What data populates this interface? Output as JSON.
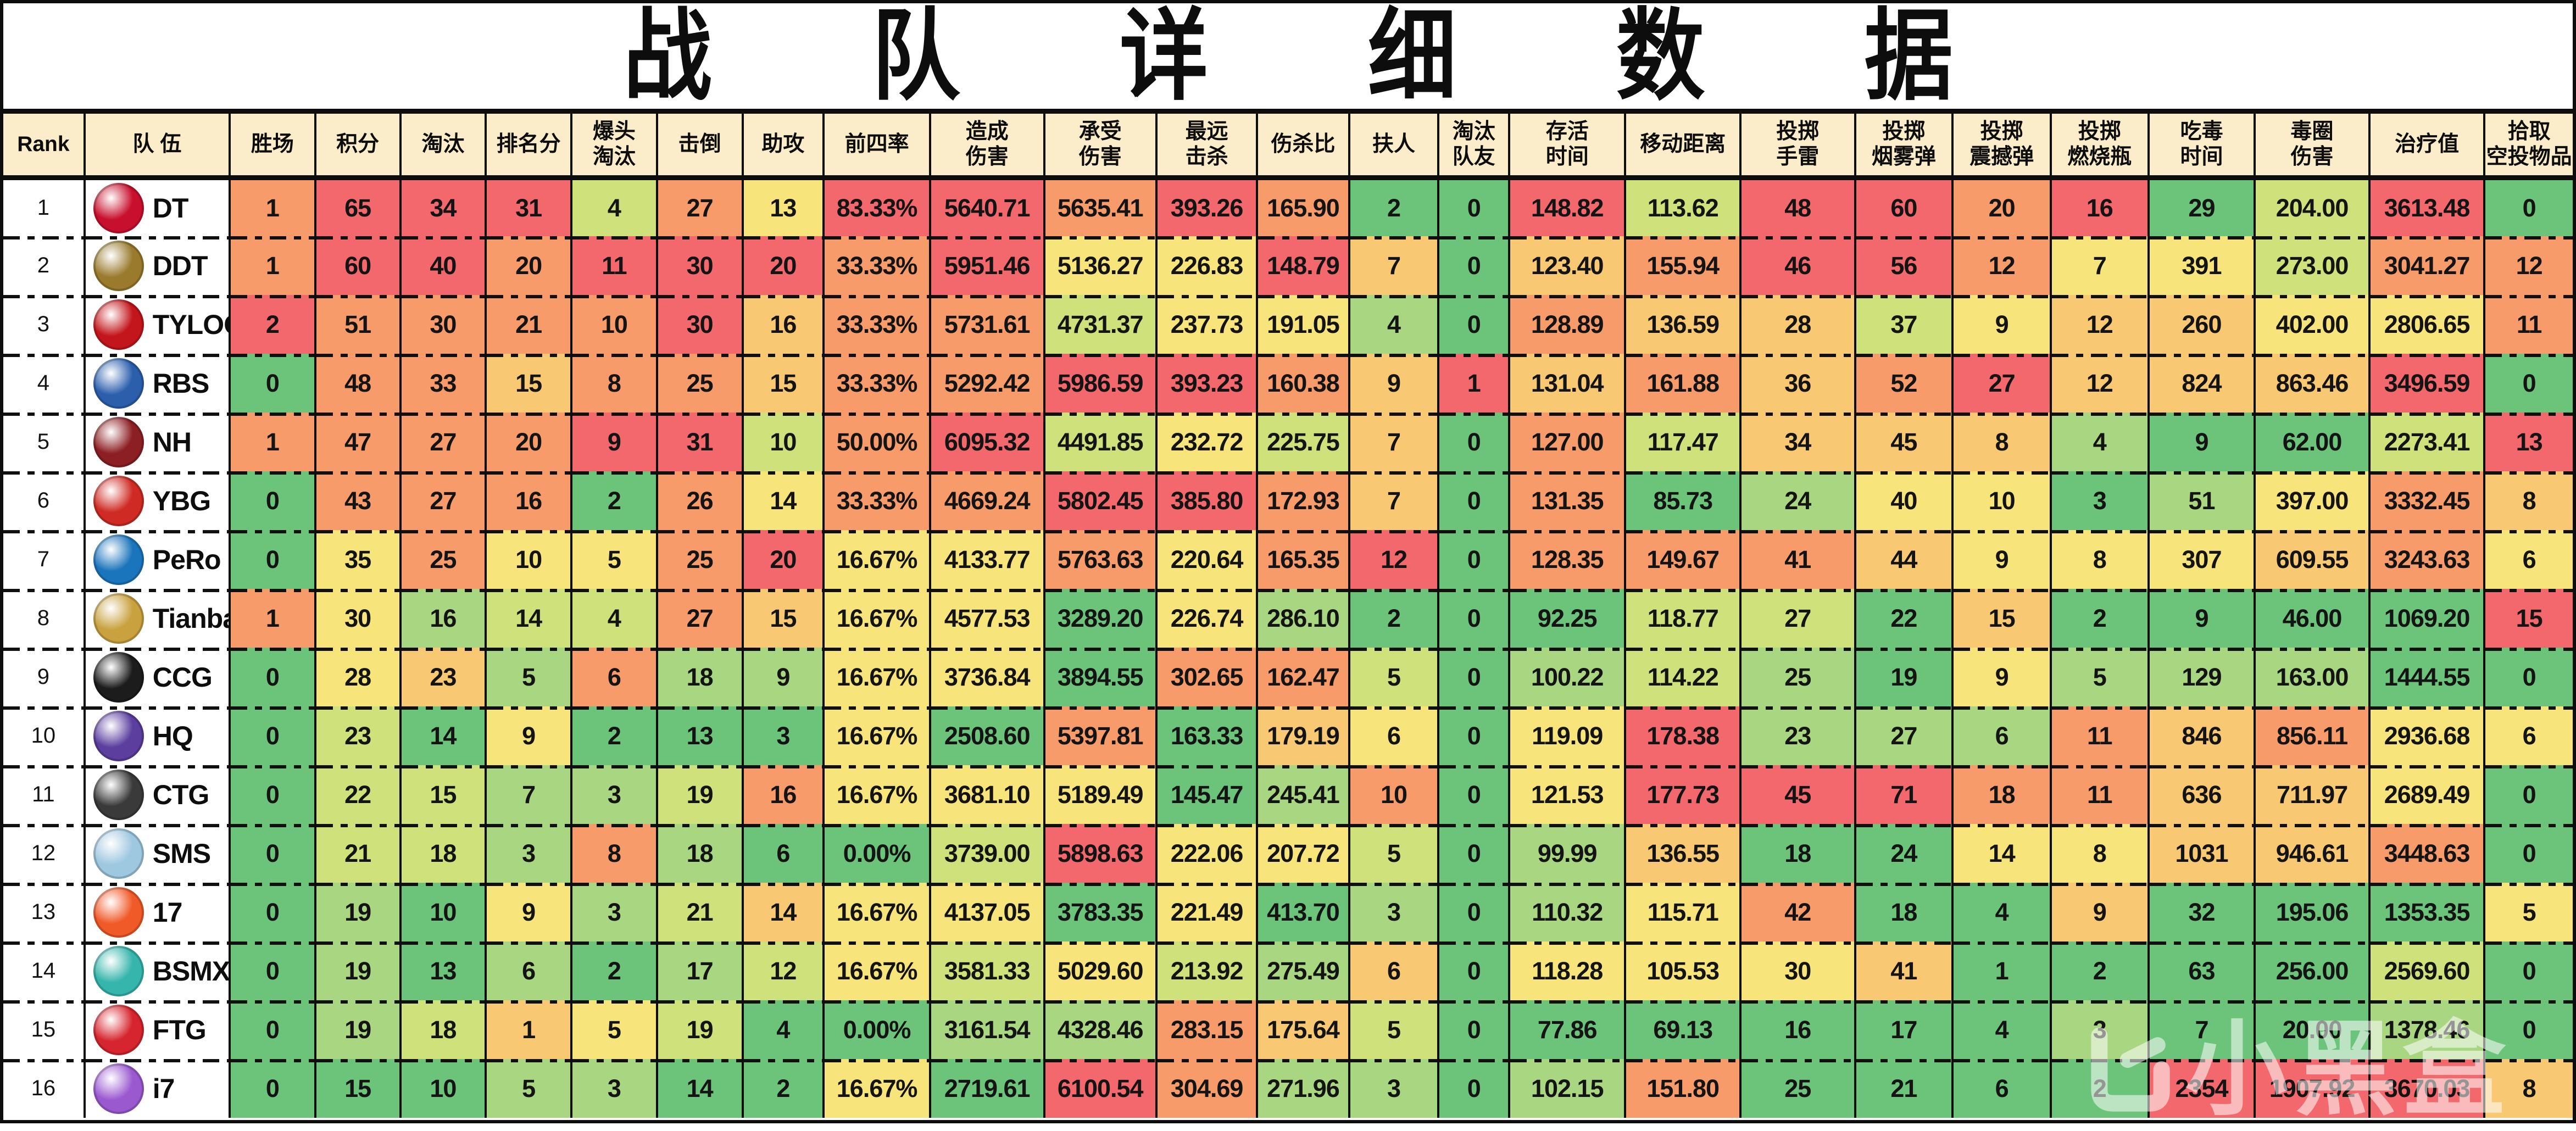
{
  "title": "战 队 详 细 数 据",
  "watermark": {
    "text": "小黑盒",
    "logo": "box-logo",
    "color": "#ffffff"
  },
  "palette": {
    "R": "#F3686C",
    "O": "#F79B6B",
    "A": "#F9C873",
    "Y": "#F7E57C",
    "G1": "#CFE17B",
    "G2": "#A9D681",
    "G3": "#6CC37A",
    "header_bg": "#FCEDCA",
    "border": "#0d0d0d",
    "plain_bg": "#ffffff"
  },
  "columns": [
    {
      "label": [
        "Rank"
      ],
      "width": 3.16
    },
    {
      "label": [
        "队  伍"
      ],
      "width": 5.65
    },
    {
      "label": [
        "胜场"
      ],
      "width": 3.33
    },
    {
      "label": [
        "积分"
      ],
      "width": 3.31
    },
    {
      "label": [
        "淘汰"
      ],
      "width": 3.33
    },
    {
      "label": [
        "排名分"
      ],
      "width": 3.33
    },
    {
      "label": [
        "爆头",
        "淘汰"
      ],
      "width": 3.33
    },
    {
      "label": [
        "击倒"
      ],
      "width": 3.33
    },
    {
      "label": [
        "助攻"
      ],
      "width": 3.16
    },
    {
      "label": [
        "前四率"
      ],
      "width": 4.14
    },
    {
      "label": [
        "造成",
        "伤害"
      ],
      "width": 4.44
    },
    {
      "label": [
        "承受",
        "伤害"
      ],
      "width": 4.37
    },
    {
      "label": [
        "最远",
        "击杀"
      ],
      "width": 3.92
    },
    {
      "label": [
        "伤杀比"
      ],
      "width": 3.58
    },
    {
      "label": [
        "扶人"
      ],
      "width": 3.48
    },
    {
      "label": [
        "淘汰",
        "队友"
      ],
      "width": 2.75
    },
    {
      "label": [
        "存活",
        "时间"
      ],
      "width": 4.52
    },
    {
      "label": [
        "移动距离"
      ],
      "width": 4.48
    },
    {
      "label": [
        "投掷",
        "手雷"
      ],
      "width": 4.46
    },
    {
      "label": [
        "投掷",
        "烟雾弹"
      ],
      "width": 3.8
    },
    {
      "label": [
        "投掷",
        "震撼弹"
      ],
      "width": 3.82
    },
    {
      "label": [
        "投掷",
        "燃烧瓶"
      ],
      "width": 3.8
    },
    {
      "label": [
        "吃毒",
        "时间"
      ],
      "width": 4.14
    },
    {
      "label": [
        "毒圈",
        "伤害"
      ],
      "width": 4.46
    },
    {
      "label": [
        "治疗值"
      ],
      "width": 4.48
    },
    {
      "label": [
        "拾取",
        "空投物品"
      ],
      "width": 3.43
    }
  ],
  "chart_data": {
    "type": "table",
    "title": "战队详细数据",
    "stat_columns": [
      "胜场",
      "积分",
      "淘汰",
      "排名分",
      "爆头淘汰",
      "击倒",
      "助攻",
      "前四率",
      "造成伤害",
      "承受伤害",
      "最远击杀",
      "伤杀比",
      "扶人",
      "淘汰队友",
      "存活时间",
      "移动距离",
      "投掷手雷",
      "投掷烟雾弹",
      "投掷震撼弹",
      "投掷燃烧瓶",
      "吃毒时间",
      "毒圈伤害",
      "治疗值",
      "拾取空投物品"
    ],
    "teams": [
      {
        "rank": "1",
        "name": "DT",
        "logo_color": "#c8102e",
        "values": [
          "1",
          "65",
          "34",
          "31",
          "4",
          "27",
          "13",
          "83.33%",
          "5640.71",
          "5635.41",
          "393.26",
          "165.90",
          "2",
          "0",
          "148.82",
          "113.62",
          "48",
          "60",
          "20",
          "16",
          "29",
          "204.00",
          "3613.48",
          "0"
        ],
        "colors": [
          "O",
          "R",
          "R",
          "R",
          "G1",
          "O",
          "Y",
          "R",
          "R",
          "O",
          "R",
          "O",
          "G3",
          "G3",
          "R",
          "G1",
          "R",
          "R",
          "O",
          "R",
          "G3",
          "G1",
          "R",
          "G3"
        ]
      },
      {
        "rank": "2",
        "name": "DDT",
        "logo_color": "#9a7b2d",
        "values": [
          "1",
          "60",
          "40",
          "20",
          "11",
          "30",
          "20",
          "33.33%",
          "5951.46",
          "5136.27",
          "226.83",
          "148.79",
          "7",
          "0",
          "123.40",
          "155.94",
          "46",
          "56",
          "12",
          "7",
          "391",
          "273.00",
          "3041.27",
          "12"
        ],
        "colors": [
          "O",
          "R",
          "R",
          "O",
          "R",
          "R",
          "R",
          "O",
          "R",
          "Y",
          "Y",
          "R",
          "A",
          "G3",
          "A",
          "O",
          "R",
          "R",
          "O",
          "Y",
          "Y",
          "G1",
          "O",
          "O"
        ]
      },
      {
        "rank": "3",
        "name": "TYLOO",
        "logo_color": "#c3161c",
        "values": [
          "2",
          "51",
          "30",
          "21",
          "10",
          "30",
          "16",
          "33.33%",
          "5731.61",
          "4731.37",
          "237.73",
          "191.05",
          "4",
          "0",
          "128.89",
          "136.59",
          "28",
          "37",
          "9",
          "12",
          "260",
          "402.00",
          "2806.65",
          "11"
        ],
        "colors": [
          "R",
          "O",
          "O",
          "O",
          "O",
          "R",
          "A",
          "O",
          "O",
          "G1",
          "Y",
          "Y",
          "G2",
          "G3",
          "O",
          "A",
          "A",
          "G1",
          "Y",
          "A",
          "A",
          "Y",
          "Y",
          "O"
        ]
      },
      {
        "rank": "4",
        "name": "RBS",
        "logo_color": "#2b5fac",
        "values": [
          "0",
          "48",
          "33",
          "15",
          "8",
          "25",
          "15",
          "33.33%",
          "5292.42",
          "5986.59",
          "393.23",
          "160.38",
          "9",
          "1",
          "131.04",
          "161.88",
          "36",
          "52",
          "27",
          "12",
          "824",
          "863.46",
          "3496.59",
          "0"
        ],
        "colors": [
          "G3",
          "O",
          "O",
          "A",
          "O",
          "O",
          "A",
          "O",
          "O",
          "R",
          "R",
          "O",
          "A",
          "R",
          "A",
          "O",
          "A",
          "O",
          "R",
          "A",
          "A",
          "A",
          "R",
          "G3"
        ]
      },
      {
        "rank": "5",
        "name": "NH",
        "logo_color": "#8c1f24",
        "values": [
          "1",
          "47",
          "27",
          "20",
          "9",
          "31",
          "10",
          "50.00%",
          "6095.32",
          "4491.85",
          "232.72",
          "225.75",
          "7",
          "0",
          "127.00",
          "117.47",
          "34",
          "45",
          "8",
          "4",
          "9",
          "62.00",
          "2273.41",
          "13"
        ],
        "colors": [
          "O",
          "O",
          "O",
          "O",
          "R",
          "R",
          "G1",
          "O",
          "R",
          "G1",
          "Y",
          "G1",
          "A",
          "G3",
          "O",
          "G1",
          "A",
          "A",
          "A",
          "G2",
          "G3",
          "G3",
          "G1",
          "R"
        ]
      },
      {
        "rank": "6",
        "name": "YBG",
        "logo_color": "#cf2b24",
        "values": [
          "0",
          "43",
          "27",
          "16",
          "2",
          "26",
          "14",
          "33.33%",
          "4669.24",
          "5802.45",
          "385.80",
          "172.93",
          "7",
          "0",
          "131.35",
          "85.73",
          "24",
          "40",
          "10",
          "3",
          "51",
          "397.00",
          "3332.45",
          "8"
        ],
        "colors": [
          "G3",
          "O",
          "O",
          "O",
          "G3",
          "O",
          "Y",
          "O",
          "O",
          "R",
          "R",
          "O",
          "A",
          "G3",
          "O",
          "G3",
          "G2",
          "Y",
          "Y",
          "G3",
          "G2",
          "Y",
          "O",
          "A"
        ]
      },
      {
        "rank": "7",
        "name": "PeRo",
        "logo_color": "#1b75bc",
        "values": [
          "0",
          "35",
          "25",
          "10",
          "5",
          "25",
          "20",
          "16.67%",
          "4133.77",
          "5763.63",
          "220.64",
          "165.35",
          "12",
          "0",
          "128.35",
          "149.67",
          "41",
          "44",
          "9",
          "8",
          "307",
          "609.55",
          "3243.63",
          "6"
        ],
        "colors": [
          "G3",
          "Y",
          "O",
          "Y",
          "Y",
          "O",
          "R",
          "Y",
          "Y",
          "O",
          "Y",
          "O",
          "R",
          "G3",
          "O",
          "O",
          "O",
          "A",
          "Y",
          "Y",
          "Y",
          "A",
          "O",
          "Y"
        ]
      },
      {
        "rank": "8",
        "name": "Tianba",
        "logo_color": "#c9a23f",
        "values": [
          "1",
          "30",
          "16",
          "14",
          "4",
          "27",
          "15",
          "16.67%",
          "4577.53",
          "3289.20",
          "226.74",
          "286.10",
          "2",
          "0",
          "92.25",
          "118.77",
          "27",
          "22",
          "15",
          "2",
          "9",
          "46.00",
          "1069.20",
          "15"
        ],
        "colors": [
          "O",
          "Y",
          "G2",
          "G1",
          "G1",
          "O",
          "A",
          "Y",
          "Y",
          "G3",
          "Y",
          "G2",
          "G3",
          "G3",
          "G3",
          "G1",
          "G1",
          "G3",
          "A",
          "G3",
          "G3",
          "G3",
          "G3",
          "R"
        ]
      },
      {
        "rank": "9",
        "name": "CCG",
        "logo_color": "#1c1c1c",
        "values": [
          "0",
          "28",
          "23",
          "5",
          "6",
          "18",
          "9",
          "16.67%",
          "3736.84",
          "3894.55",
          "302.65",
          "162.47",
          "5",
          "0",
          "100.22",
          "114.22",
          "25",
          "19",
          "9",
          "5",
          "129",
          "163.00",
          "1444.55",
          "0"
        ],
        "colors": [
          "G3",
          "Y",
          "A",
          "G2",
          "O",
          "G2",
          "G2",
          "Y",
          "Y",
          "G3",
          "O",
          "O",
          "G1",
          "G3",
          "G2",
          "G1",
          "G2",
          "G3",
          "Y",
          "G2",
          "G2",
          "G2",
          "G3",
          "G3"
        ]
      },
      {
        "rank": "10",
        "name": "HQ",
        "logo_color": "#5b3e9e",
        "values": [
          "0",
          "23",
          "14",
          "9",
          "2",
          "13",
          "3",
          "16.67%",
          "2508.60",
          "5397.81",
          "163.33",
          "179.19",
          "6",
          "0",
          "119.09",
          "178.38",
          "23",
          "27",
          "6",
          "11",
          "846",
          "856.11",
          "2936.68",
          "6"
        ],
        "colors": [
          "G3",
          "G1",
          "G3",
          "Y",
          "G3",
          "G3",
          "G3",
          "Y",
          "G3",
          "O",
          "G3",
          "A",
          "Y",
          "G3",
          "Y",
          "R",
          "G2",
          "G2",
          "G2",
          "O",
          "A",
          "O",
          "Y",
          "Y"
        ]
      },
      {
        "rank": "11",
        "name": "CTG",
        "logo_color": "#3a3a3a",
        "values": [
          "0",
          "22",
          "15",
          "7",
          "3",
          "19",
          "16",
          "16.67%",
          "3681.10",
          "5189.49",
          "145.47",
          "245.41",
          "10",
          "0",
          "121.53",
          "177.73",
          "45",
          "71",
          "18",
          "11",
          "636",
          "711.97",
          "2689.49",
          "0"
        ],
        "colors": [
          "G3",
          "G1",
          "G1",
          "G2",
          "G2",
          "G1",
          "O",
          "Y",
          "Y",
          "Y",
          "G3",
          "G2",
          "O",
          "G3",
          "Y",
          "R",
          "R",
          "R",
          "O",
          "O",
          "A",
          "A",
          "Y",
          "G3"
        ]
      },
      {
        "rank": "12",
        "name": "SMS",
        "logo_color": "#9ec7e0",
        "values": [
          "0",
          "21",
          "18",
          "3",
          "8",
          "18",
          "6",
          "0.00%",
          "3739.00",
          "5898.63",
          "222.06",
          "207.72",
          "5",
          "0",
          "99.99",
          "136.55",
          "18",
          "24",
          "14",
          "8",
          "1031",
          "946.61",
          "3448.63",
          "0"
        ],
        "colors": [
          "G3",
          "G1",
          "G1",
          "G2",
          "O",
          "G2",
          "G3",
          "G3",
          "G1",
          "R",
          "Y",
          "Y",
          "G1",
          "G3",
          "G2",
          "A",
          "G3",
          "G3",
          "Y",
          "Y",
          "A",
          "A",
          "O",
          "G3"
        ]
      },
      {
        "rank": "13",
        "name": "17",
        "logo_color": "#f05a28",
        "values": [
          "0",
          "19",
          "10",
          "9",
          "3",
          "21",
          "14",
          "16.67%",
          "4137.05",
          "3783.35",
          "221.49",
          "413.70",
          "3",
          "0",
          "110.32",
          "115.71",
          "42",
          "18",
          "4",
          "9",
          "32",
          "195.06",
          "1353.35",
          "5"
        ],
        "colors": [
          "G3",
          "G2",
          "G3",
          "Y",
          "G2",
          "G1",
          "A",
          "Y",
          "Y",
          "G3",
          "Y",
          "G3",
          "G2",
          "G3",
          "G2",
          "Y",
          "O",
          "G3",
          "G3",
          "A",
          "G3",
          "G3",
          "G3",
          "Y"
        ]
      },
      {
        "rank": "14",
        "name": "BSMX",
        "logo_color": "#35b5ac",
        "values": [
          "0",
          "19",
          "13",
          "6",
          "2",
          "17",
          "12",
          "16.67%",
          "3581.33",
          "5029.60",
          "213.92",
          "275.49",
          "6",
          "0",
          "118.28",
          "105.53",
          "30",
          "41",
          "1",
          "2",
          "63",
          "256.00",
          "2569.60",
          "0"
        ],
        "colors": [
          "G3",
          "G2",
          "G3",
          "G2",
          "G3",
          "G2",
          "G1",
          "Y",
          "G1",
          "Y",
          "G1",
          "G2",
          "A",
          "G3",
          "Y",
          "Y",
          "Y",
          "A",
          "G3",
          "G3",
          "G3",
          "G3",
          "G1",
          "G3"
        ]
      },
      {
        "rank": "15",
        "name": "FTG",
        "logo_color": "#d6252e",
        "values": [
          "0",
          "19",
          "18",
          "1",
          "5",
          "19",
          "4",
          "0.00%",
          "3161.54",
          "4328.46",
          "283.15",
          "175.64",
          "5",
          "0",
          "77.86",
          "69.13",
          "16",
          "17",
          "4",
          "3",
          "7",
          "20.00",
          "1378.46",
          "0"
        ],
        "colors": [
          "G3",
          "G2",
          "G1",
          "A",
          "Y",
          "G1",
          "G3",
          "G3",
          "G2",
          "G2",
          "O",
          "A",
          "G1",
          "G3",
          "G3",
          "G3",
          "G3",
          "G3",
          "G3",
          "G2",
          "G3",
          "G3",
          "G2",
          "G3"
        ]
      },
      {
        "rank": "16",
        "name": "i7",
        "logo_color": "#9b59d0",
        "values": [
          "0",
          "15",
          "10",
          "5",
          "3",
          "14",
          "2",
          "16.67%",
          "2719.61",
          "6100.54",
          "304.69",
          "271.96",
          "3",
          "0",
          "102.15",
          "151.80",
          "25",
          "21",
          "6",
          "2",
          "2354",
          "1907.92",
          "3670.03",
          "8"
        ],
        "colors": [
          "G3",
          "G3",
          "G3",
          "G2",
          "G2",
          "G3",
          "G3",
          "Y",
          "G3",
          "R",
          "O",
          "G2",
          "G2",
          "G3",
          "G2",
          "O",
          "G3",
          "G3",
          "G3",
          "G3",
          "R",
          "R",
          "R",
          "A"
        ]
      }
    ]
  }
}
